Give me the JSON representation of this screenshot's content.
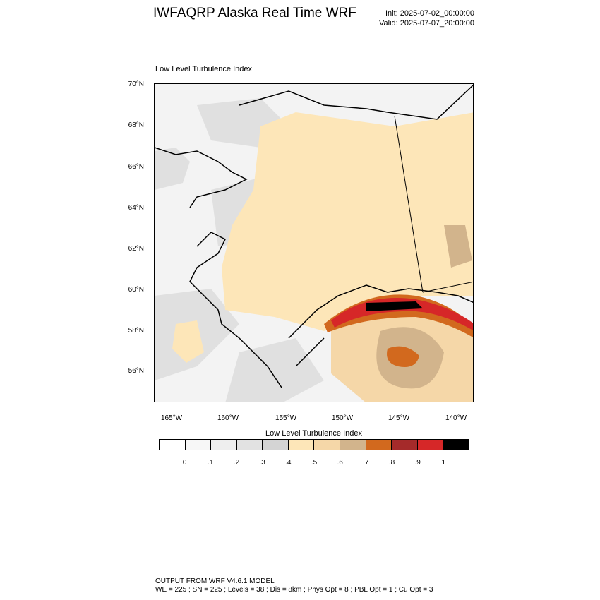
{
  "header": {
    "title": "IWFAQRP Alaska Real Time WRF",
    "init": "Init: 2025-07-02_00:00:00",
    "valid": "Valid: 2025-07-07_20:00:00"
  },
  "map": {
    "subtitle": "Low Level Turbulence Index",
    "lat_labels": [
      "70°N",
      "68°N",
      "66°N",
      "64°N",
      "62°N",
      "60°N",
      "58°N",
      "56°N"
    ],
    "lon_labels": [
      "165°W",
      "160°W",
      "155°W",
      "150°W",
      "145°W",
      "140°W"
    ]
  },
  "colorbar": {
    "title": "Low Level Turbulence Index",
    "colors": [
      "#ffffff",
      "#f7f7f7",
      "#eeeeee",
      "#e2e2e2",
      "#d4d4d4",
      "#fde6b8",
      "#f5d7a8",
      "#d2b48c",
      "#d2691e",
      "#a52a2a",
      "#d62728",
      "#000000"
    ],
    "labels": [
      "0",
      ".1",
      ".2",
      ".3",
      ".4",
      ".5",
      ".6",
      ".7",
      ".8",
      ".9",
      "1"
    ]
  },
  "footer": {
    "line1": "OUTPUT FROM WRF V4.6.1 MODEL",
    "line2": "WE = 225 ; SN = 225 ; Levels = 38 ; Dis = 8km ; Phys Opt = 8 ; PBL Opt = 1 ; Cu Opt = 3"
  }
}
